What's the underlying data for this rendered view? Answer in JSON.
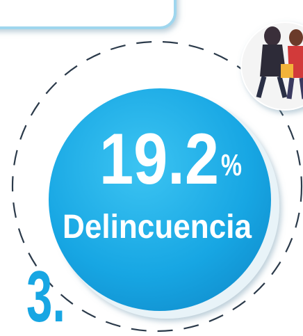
{
  "stat": {
    "value": 19.2,
    "unit": "%",
    "label": "Delincuencia"
  },
  "index": "3."
}
